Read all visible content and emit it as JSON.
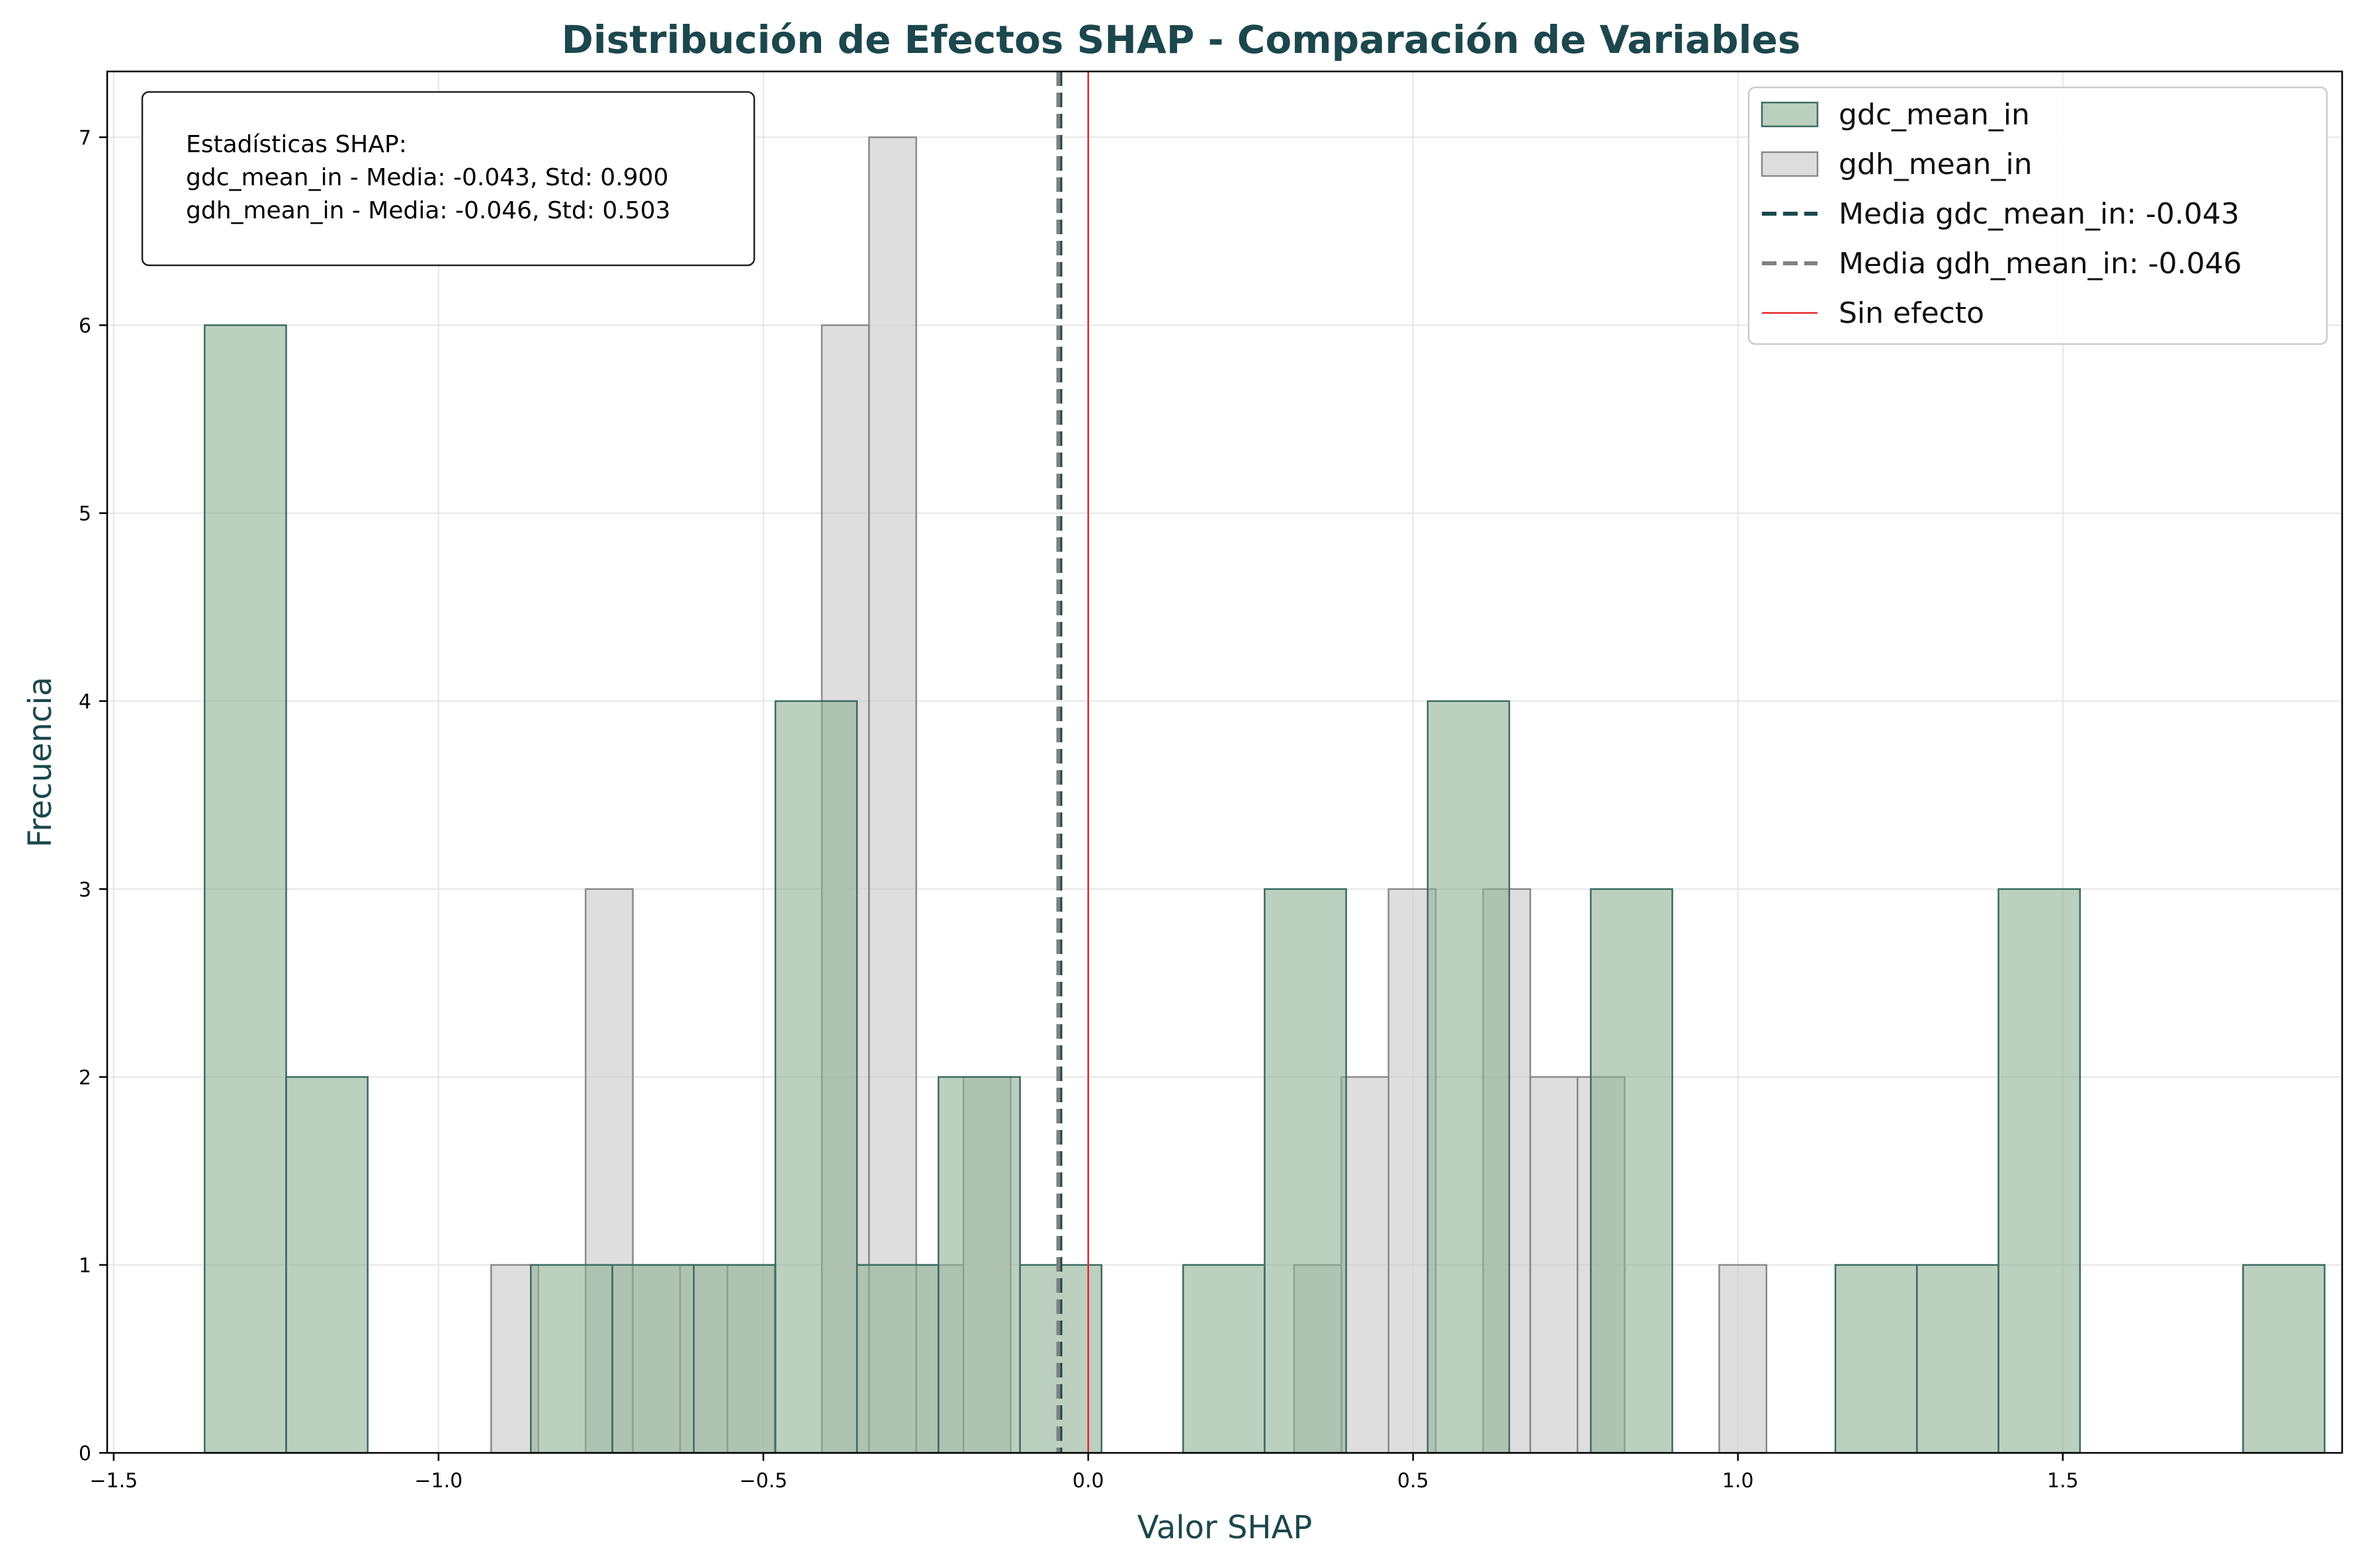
{
  "colors": {
    "series_a_fill": "#8fb096",
    "series_a_edge": "#3c6b60",
    "series_b_fill": "#c8c8c8",
    "series_b_edge": "#8a8a8a",
    "mean_a_line": "#1b474d",
    "mean_b_line": "#808080",
    "zero_line": "#e3262b",
    "grid": "#e6e6e6",
    "title": "#1b474d"
  },
  "chart_data": {
    "type": "bar",
    "subtype": "overlaid-histogram",
    "title": "Distribución de Efectos SHAP - Comparación de Variables",
    "xlabel": "Valor SHAP",
    "ylabel": "Frecuencia",
    "xlim": [
      -1.51,
      1.93
    ],
    "ylim": [
      0,
      7.35
    ],
    "grid": true,
    "legend_position": "top-right",
    "x_ticks": [
      -1.5,
      -1.0,
      -0.5,
      0.0,
      0.5,
      1.0,
      1.5
    ],
    "x_tick_labels": [
      "−1.5",
      "−1.0",
      "−0.5",
      "0.0",
      "0.5",
      "1.0",
      "1.5"
    ],
    "y_ticks": [
      0,
      1,
      2,
      3,
      4,
      5,
      6,
      7
    ],
    "y_tick_labels": [
      "0",
      "1",
      "2",
      "3",
      "4",
      "5",
      "6",
      "7"
    ],
    "series": [
      {
        "name": "gdc_mean_in",
        "bin_start": -1.36,
        "bin_width": 0.1255,
        "counts": [
          6,
          2,
          0,
          0,
          1,
          1,
          1,
          4,
          1,
          2,
          1,
          0,
          1,
          3,
          0,
          4,
          0,
          3,
          0,
          0,
          1,
          1,
          3,
          0,
          0,
          1
        ]
      },
      {
        "name": "gdh_mean_in",
        "bin_start": -0.919,
        "bin_width": 0.0727,
        "counts": [
          1,
          0,
          3,
          1,
          1,
          1,
          0,
          6,
          7,
          1,
          2,
          0,
          0,
          0,
          0,
          0,
          0,
          1,
          2,
          3,
          0,
          3,
          2,
          2,
          0,
          0,
          1
        ]
      }
    ],
    "reference_lines": [
      {
        "label": "Media gdc_mean_in: -0.043",
        "x": -0.043,
        "style": "dashed"
      },
      {
        "label": "Media gdh_mean_in: -0.046",
        "x": -0.046,
        "style": "dashed"
      },
      {
        "label": "Sin efecto",
        "x": 0.0,
        "style": "solid"
      }
    ],
    "legend": [
      {
        "label": "gdc_mean_in",
        "kind": "patch",
        "color": "#8fb096"
      },
      {
        "label": "gdh_mean_in",
        "kind": "patch",
        "color": "#c8c8c8"
      },
      {
        "label": "Media gdc_mean_in: -0.043",
        "kind": "dashed",
        "color": "#1b474d"
      },
      {
        "label": "Media gdh_mean_in: -0.046",
        "kind": "dashed",
        "color": "#808080"
      },
      {
        "label": "Sin efecto",
        "kind": "line",
        "color": "#e3262b"
      }
    ],
    "stats_box": {
      "heading": "Estadísticas SHAP:",
      "line1": "gdc_mean_in - Media: -0.043, Std: 0.900",
      "line2": "gdh_mean_in - Media: -0.046, Std: 0.503"
    }
  }
}
